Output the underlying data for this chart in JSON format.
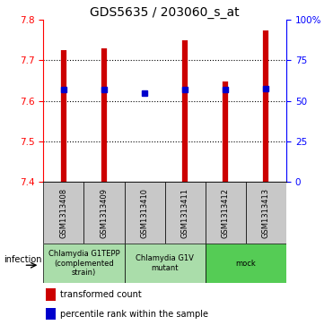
{
  "title": "GDS5635 / 203060_s_at",
  "samples": [
    "GSM1313408",
    "GSM1313409",
    "GSM1313410",
    "GSM1313411",
    "GSM1313412",
    "GSM1313413"
  ],
  "bar_top": [
    7.724,
    7.728,
    7.401,
    7.748,
    7.647,
    7.773
  ],
  "bar_bottom": [
    7.4,
    7.4,
    7.4,
    7.4,
    7.4,
    7.4
  ],
  "percentile_values": [
    7.627,
    7.628,
    7.618,
    7.628,
    7.628,
    7.63
  ],
  "ylim_left": [
    7.4,
    7.8
  ],
  "ylim_right": [
    0,
    100
  ],
  "yticks_left": [
    7.4,
    7.5,
    7.6,
    7.7,
    7.8
  ],
  "yticks_right": [
    0,
    25,
    50,
    75,
    100
  ],
  "ytick_labels_right": [
    "0",
    "25",
    "50",
    "75",
    "100%"
  ],
  "bar_color": "#cc0000",
  "percentile_color": "#0000cc",
  "group_configs": [
    {
      "indices": [
        0,
        1
      ],
      "label": "Chlamydia G1TEPP\n(complemented\nstrain)",
      "color": "#aaddaa"
    },
    {
      "indices": [
        2,
        3
      ],
      "label": "Chlamydia G1V\nmutant",
      "color": "#aaddaa"
    },
    {
      "indices": [
        4,
        5
      ],
      "label": "mock",
      "color": "#55cc55"
    }
  ],
  "infection_label": "infection",
  "legend_red": "transformed count",
  "legend_blue": "percentile rank within the sample",
  "title_fontsize": 10,
  "tick_fontsize": 7.5,
  "sample_fontsize": 6,
  "group_fontsize": 6,
  "legend_fontsize": 7
}
